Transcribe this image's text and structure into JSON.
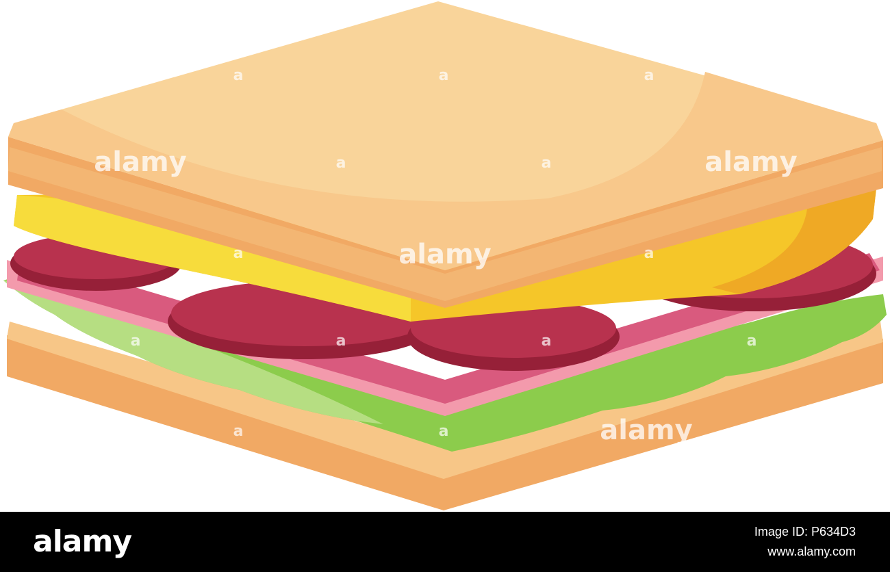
{
  "image": {
    "description": "Sandwich illustration"
  },
  "watermarks": [
    "alamy",
    "alamy",
    "alamy",
    "alamy"
  ],
  "marks": [
    "a",
    "a",
    "a",
    "a",
    "a",
    "a",
    "a",
    "a",
    "a",
    "a",
    "a",
    "a",
    "a"
  ],
  "footer": {
    "logo": "alamy",
    "image_id": "Image ID: P634D3",
    "url": "www.alamy.com"
  }
}
